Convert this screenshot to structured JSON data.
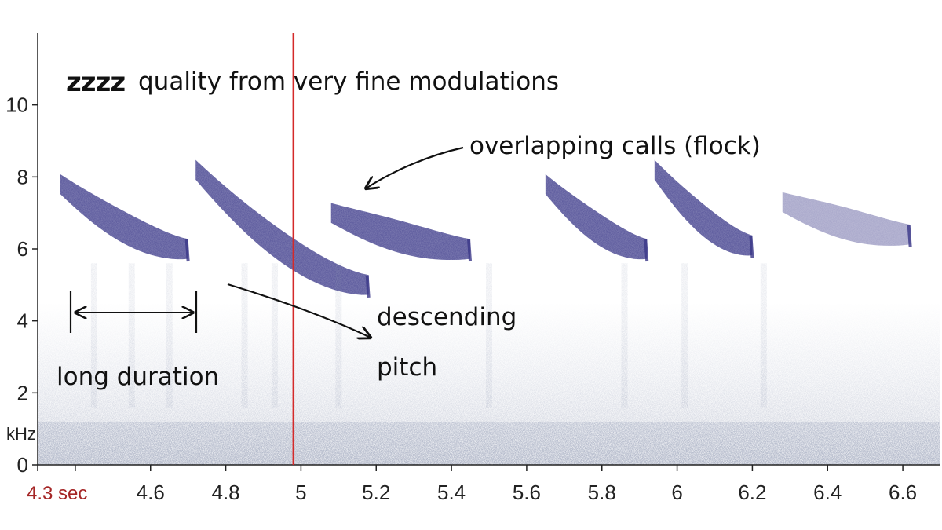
{
  "chart_data": {
    "type": "spectrogram",
    "title": "",
    "xlabel": "",
    "ylabel": "kHz",
    "x_start_label": "4.3 sec",
    "xlim": [
      4.3,
      6.7
    ],
    "ylim": [
      0,
      12
    ],
    "x_ticks": [
      4.4,
      4.6,
      4.8,
      5.0,
      5.2,
      5.4,
      5.6,
      5.8,
      6.0,
      6.2,
      6.4,
      6.6
    ],
    "x_tick_labels": [
      "",
      "4.6",
      "4.8",
      "5",
      "5.2",
      "5.4",
      "5.6",
      "5.8",
      "6",
      "6.2",
      "6.4",
      "6.6"
    ],
    "y_ticks": [
      0,
      2,
      4,
      6,
      8,
      10
    ],
    "y_tick_labels": [
      "0",
      "2",
      "4",
      "6",
      "8",
      "10"
    ],
    "playhead_time": 4.98,
    "colors": {
      "call": "#3a3788",
      "noise": "#7f8aa8",
      "playhead": "#d42a2a",
      "start_label": "#a52626"
    },
    "calls": [
      {
        "t_start": 4.36,
        "t_end": 4.7,
        "f_start": 7.8,
        "f_end": 6.0
      },
      {
        "t_start": 4.72,
        "t_end": 5.18,
        "f_start": 8.2,
        "f_end": 5.0
      },
      {
        "t_start": 5.08,
        "t_end": 5.45,
        "f_start": 7.0,
        "f_end": 6.0
      },
      {
        "t_start": 5.65,
        "t_end": 5.92,
        "f_start": 7.8,
        "f_end": 6.0
      },
      {
        "t_start": 5.94,
        "t_end": 6.2,
        "f_start": 8.2,
        "f_end": 6.1
      },
      {
        "t_start": 6.28,
        "t_end": 6.62,
        "f_start": 7.3,
        "f_end": 6.4
      }
    ],
    "annotations": {
      "zzzz": "zzzz",
      "quality": "quality from very fine modulations",
      "overlap": "overlapping calls (flock)",
      "descending_line1": "descending",
      "descending_line2": "pitch",
      "duration": "long duration"
    }
  }
}
